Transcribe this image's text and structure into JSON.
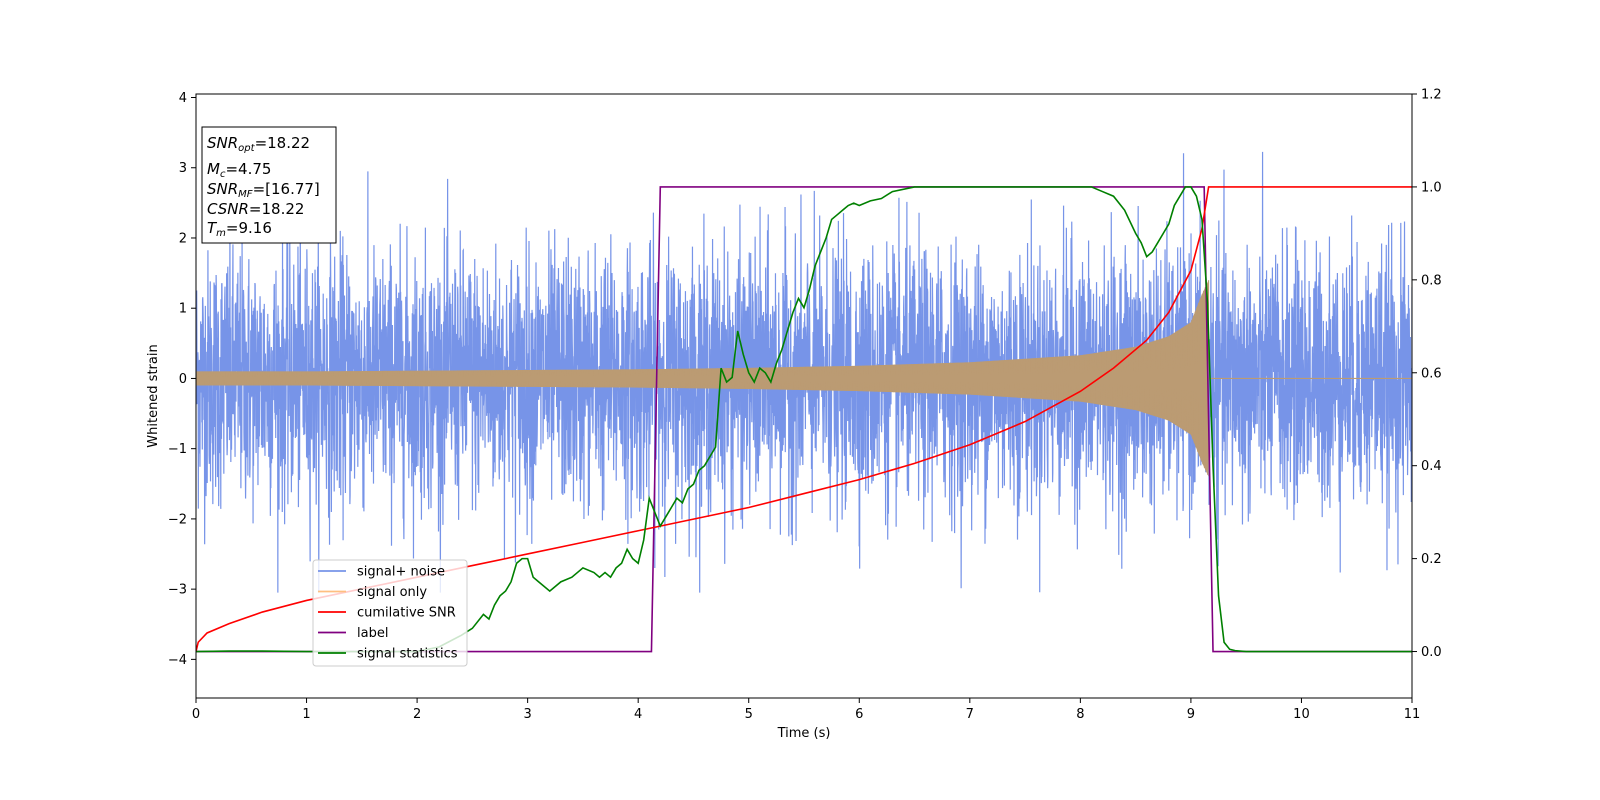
{
  "chart_data": {
    "type": "line",
    "xlabel": "Time (s)",
    "ylabel": "Whitened strain",
    "xlim": [
      0,
      11
    ],
    "ylim_left": [
      -4.55,
      4.05
    ],
    "ylim_right": [
      -0.1,
      1.2
    ],
    "x_ticks": [
      "0",
      "1",
      "2",
      "3",
      "4",
      "5",
      "6",
      "7",
      "8",
      "9",
      "10",
      "11"
    ],
    "y_ticks_left": [
      "4",
      "3",
      "2",
      "1",
      "0",
      "−1",
      "−2",
      "−3",
      "−4"
    ],
    "y_tick_values_left": [
      4,
      3,
      2,
      1,
      0,
      -1,
      -2,
      -3,
      -4
    ],
    "y_ticks_right": [
      "1.2",
      "1.0",
      "0.8",
      "0.6",
      "0.4",
      "0.2",
      "0.0"
    ],
    "y_tick_values_right": [
      1.2,
      1.0,
      0.8,
      0.6,
      0.4,
      0.2,
      0.0
    ],
    "grid": false,
    "legend_placement": "lower-left",
    "info_box": {
      "snr_opt": "=18.22",
      "mc": "=4.75",
      "snr_mf": "=[16.77]",
      "csnr": "=18.22",
      "tm": "=9.16"
    },
    "series": [
      {
        "name": "signal+ noise",
        "color": "#7794e8",
        "axis": "left",
        "description_values": {
          "t_start": 0,
          "t_end": 11,
          "std": 0.9,
          "max": 3.65,
          "min": -3.05
        }
      },
      {
        "name": "signal only",
        "color": "#bb9b73",
        "legend_color": "#ffbf80",
        "axis": "left",
        "envelope": {
          "x": [
            0,
            1,
            2,
            3,
            4,
            5,
            6,
            7,
            8,
            8.5,
            8.8,
            9.0,
            9.1,
            9.16
          ],
          "amplitude": [
            0.1,
            0.1,
            0.11,
            0.12,
            0.13,
            0.15,
            0.18,
            0.23,
            0.33,
            0.45,
            0.6,
            0.8,
            1.2,
            1.4
          ]
        }
      },
      {
        "name": "cumilative SNR",
        "color": "#ff0000",
        "axis": "right",
        "x": [
          0,
          0.02,
          0.1,
          0.3,
          0.6,
          1,
          1.5,
          2,
          2.5,
          3,
          3.5,
          4,
          4.5,
          5,
          5.5,
          6,
          6.5,
          7,
          7.5,
          8,
          8.3,
          8.6,
          8.8,
          9.0,
          9.1,
          9.16,
          11
        ],
        "values": [
          0.0,
          0.02,
          0.04,
          0.06,
          0.085,
          0.11,
          0.135,
          0.16,
          0.185,
          0.21,
          0.235,
          0.26,
          0.285,
          0.31,
          0.34,
          0.37,
          0.405,
          0.445,
          0.495,
          0.56,
          0.61,
          0.67,
          0.73,
          0.82,
          0.91,
          1.0,
          1.0
        ]
      },
      {
        "name": "label",
        "color": "#800080",
        "axis": "right",
        "x": [
          0,
          4.12,
          4.2,
          9.12,
          9.2,
          11
        ],
        "values": [
          0.0,
          0.0,
          1.0,
          1.0,
          0.0,
          0.0
        ]
      },
      {
        "name": "signal statistics",
        "color": "#008000",
        "axis": "right",
        "x": [
          0,
          0.3,
          0.6,
          1,
          1.5,
          2,
          2.2,
          2.4,
          2.5,
          2.6,
          2.65,
          2.7,
          2.75,
          2.8,
          2.85,
          2.9,
          2.95,
          3.0,
          3.05,
          3.1,
          3.2,
          3.3,
          3.4,
          3.45,
          3.5,
          3.6,
          3.65,
          3.7,
          3.75,
          3.8,
          3.85,
          3.9,
          3.95,
          4.0,
          4.05,
          4.1,
          4.15,
          4.2,
          4.25,
          4.3,
          4.35,
          4.4,
          4.45,
          4.5,
          4.55,
          4.6,
          4.65,
          4.7,
          4.75,
          4.8,
          4.85,
          4.9,
          4.95,
          5.0,
          5.05,
          5.1,
          5.15,
          5.2,
          5.25,
          5.3,
          5.35,
          5.4,
          5.45,
          5.5,
          5.55,
          5.6,
          5.65,
          5.7,
          5.75,
          5.8,
          5.85,
          5.9,
          5.95,
          6.0,
          6.1,
          6.2,
          6.3,
          6.5,
          7.0,
          7.5,
          8.0,
          8.1,
          8.2,
          8.3,
          8.4,
          8.5,
          8.55,
          8.6,
          8.65,
          8.7,
          8.75,
          8.8,
          8.85,
          8.9,
          8.95,
          9.0,
          9.05,
          9.1,
          9.15,
          9.2,
          9.25,
          9.3,
          9.35,
          9.4,
          9.5,
          9.7,
          10,
          11
        ],
        "values": [
          0.0,
          0.001,
          0.001,
          0.0,
          0.0,
          0.0,
          0.01,
          0.035,
          0.05,
          0.08,
          0.07,
          0.1,
          0.12,
          0.13,
          0.15,
          0.19,
          0.2,
          0.2,
          0.16,
          0.15,
          0.13,
          0.15,
          0.16,
          0.17,
          0.18,
          0.17,
          0.16,
          0.17,
          0.16,
          0.18,
          0.19,
          0.22,
          0.2,
          0.19,
          0.24,
          0.33,
          0.3,
          0.27,
          0.29,
          0.31,
          0.33,
          0.32,
          0.35,
          0.36,
          0.39,
          0.4,
          0.42,
          0.44,
          0.61,
          0.58,
          0.59,
          0.69,
          0.64,
          0.6,
          0.58,
          0.61,
          0.6,
          0.58,
          0.62,
          0.65,
          0.69,
          0.73,
          0.76,
          0.74,
          0.78,
          0.83,
          0.86,
          0.89,
          0.93,
          0.94,
          0.95,
          0.96,
          0.965,
          0.96,
          0.97,
          0.975,
          0.99,
          1.0,
          1.0,
          1.0,
          1.0,
          1.0,
          0.99,
          0.98,
          0.95,
          0.9,
          0.88,
          0.85,
          0.86,
          0.88,
          0.9,
          0.92,
          0.96,
          0.98,
          1.0,
          1.0,
          0.98,
          0.93,
          0.75,
          0.4,
          0.12,
          0.02,
          0.005,
          0.002,
          0.0,
          0.0,
          0.0,
          0.0
        ]
      }
    ]
  }
}
